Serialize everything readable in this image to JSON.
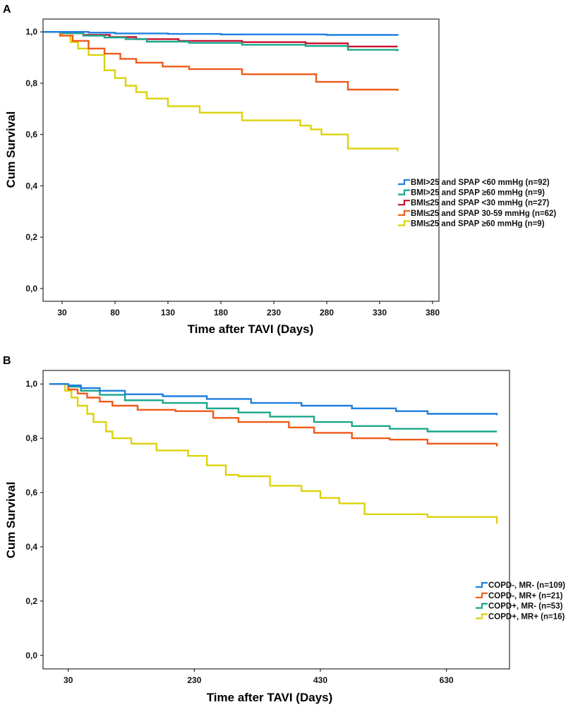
{
  "chart_data": [
    {
      "panel_label": "A",
      "type": "line",
      "subtype": "kaplan-meier step",
      "xlabel": "Time after TAVI (Days)",
      "ylabel": "Cum Survival",
      "xticks": [
        30,
        80,
        130,
        180,
        230,
        280,
        330,
        380
      ],
      "xtick_labels": [
        "30",
        "80",
        "130",
        "180",
        "230",
        "280",
        "330",
        "380"
      ],
      "yticks": [
        0.0,
        0.2,
        0.4,
        0.6,
        0.8,
        1.0
      ],
      "ytick_labels": [
        "0,0",
        "0,2",
        "0,4",
        "0,6",
        "0,8",
        "1,0"
      ],
      "xlim": [
        12,
        386
      ],
      "ylim": [
        -0.05,
        1.05
      ],
      "legend_position": "right",
      "series": [
        {
          "name": "BMI>25 and SPAP <60 mmHg (n=92)",
          "color": "#1f7fe0",
          "x": [
            12,
            30,
            55,
            80,
            130,
            180,
            230,
            280,
            347
          ],
          "y": [
            1.0,
            1.0,
            0.997,
            0.994,
            0.992,
            0.99,
            0.99,
            0.988,
            0.985
          ]
        },
        {
          "name": "BMI>25 and SPAP ≥60 mmHg (n=9)",
          "color": "#1aa68c",
          "x": [
            12,
            30,
            50,
            70,
            90,
            110,
            150,
            200,
            260,
            300,
            347
          ],
          "y": [
            1.0,
            0.995,
            0.985,
            0.978,
            0.972,
            0.962,
            0.957,
            0.95,
            0.945,
            0.93,
            0.925
          ]
        },
        {
          "name": "BMI≤25 and SPAP <30 mmHg (n=27)",
          "color": "#c8102e",
          "x": [
            12,
            30,
            50,
            75,
            100,
            140,
            200,
            260,
            300,
            347
          ],
          "y": [
            1.0,
            0.995,
            0.988,
            0.98,
            0.972,
            0.965,
            0.96,
            0.955,
            0.943,
            0.943
          ]
        },
        {
          "name": "BMI≤25 and SPAP 30-59 mmHg (n=62)",
          "color": "#f05a1a",
          "x": [
            12,
            28,
            40,
            55,
            70,
            85,
            100,
            125,
            150,
            200,
            270,
            300,
            347
          ],
          "y": [
            1.0,
            0.985,
            0.965,
            0.935,
            0.915,
            0.895,
            0.88,
            0.865,
            0.855,
            0.835,
            0.805,
            0.775,
            0.77
          ]
        },
        {
          "name": "BMI≤25 and SPAP ≥60 mmHg (n=9)",
          "color": "#dcd20a",
          "x": [
            12,
            30,
            38,
            45,
            55,
            70,
            80,
            90,
            100,
            110,
            130,
            160,
            200,
            255,
            265,
            275,
            300,
            347
          ],
          "y": [
            1.0,
            0.985,
            0.96,
            0.935,
            0.91,
            0.85,
            0.82,
            0.79,
            0.765,
            0.74,
            0.71,
            0.685,
            0.655,
            0.635,
            0.62,
            0.6,
            0.545,
            0.535
          ]
        }
      ]
    },
    {
      "panel_label": "B",
      "type": "line",
      "subtype": "kaplan-meier step",
      "xlabel": "Time after TAVI (Days)",
      "ylabel": "Cum Survival",
      "xticks": [
        30,
        230,
        430,
        630
      ],
      "xtick_labels": [
        "30",
        "230",
        "430",
        "630"
      ],
      "yticks": [
        0.0,
        0.2,
        0.4,
        0.6,
        0.8,
        1.0
      ],
      "ytick_labels": [
        "0,0",
        "0,2",
        "0,4",
        "0,6",
        "0,8",
        "1,0"
      ],
      "xlim": [
        -10,
        730
      ],
      "ylim": [
        -0.05,
        1.05
      ],
      "legend_position": "right",
      "series": [
        {
          "name": "COPD-, MR- (n=109)",
          "color": "#1f7fe0",
          "x": [
            0,
            30,
            50,
            80,
            120,
            180,
            250,
            320,
            400,
            480,
            550,
            600,
            710
          ],
          "y": [
            1.0,
            0.995,
            0.985,
            0.975,
            0.962,
            0.955,
            0.945,
            0.93,
            0.92,
            0.91,
            0.9,
            0.89,
            0.885
          ]
        },
        {
          "name": "COPD-, MR+ (n=21)",
          "color": "#f05a1a",
          "x": [
            0,
            30,
            45,
            60,
            80,
            100,
            140,
            200,
            260,
            300,
            380,
            420,
            480,
            540,
            600,
            710
          ],
          "y": [
            1.0,
            0.98,
            0.965,
            0.95,
            0.935,
            0.92,
            0.905,
            0.9,
            0.875,
            0.86,
            0.84,
            0.82,
            0.8,
            0.795,
            0.78,
            0.77
          ]
        },
        {
          "name": "COPD+, MR- (n=53)",
          "color": "#1aa68c",
          "x": [
            0,
            30,
            50,
            80,
            120,
            180,
            250,
            300,
            350,
            420,
            480,
            540,
            600,
            710
          ],
          "y": [
            1.0,
            0.99,
            0.975,
            0.96,
            0.94,
            0.93,
            0.91,
            0.895,
            0.88,
            0.86,
            0.845,
            0.835,
            0.825,
            0.825
          ]
        },
        {
          "name": "COPD+, MR+ (n=16)",
          "color": "#dcd20a",
          "x": [
            0,
            25,
            35,
            45,
            60,
            70,
            90,
            100,
            130,
            170,
            220,
            250,
            280,
            300,
            350,
            400,
            430,
            460,
            500,
            600,
            710
          ],
          "y": [
            1.0,
            0.975,
            0.95,
            0.92,
            0.89,
            0.86,
            0.825,
            0.8,
            0.78,
            0.755,
            0.735,
            0.7,
            0.665,
            0.66,
            0.625,
            0.605,
            0.58,
            0.56,
            0.52,
            0.51,
            0.485
          ]
        }
      ]
    }
  ]
}
